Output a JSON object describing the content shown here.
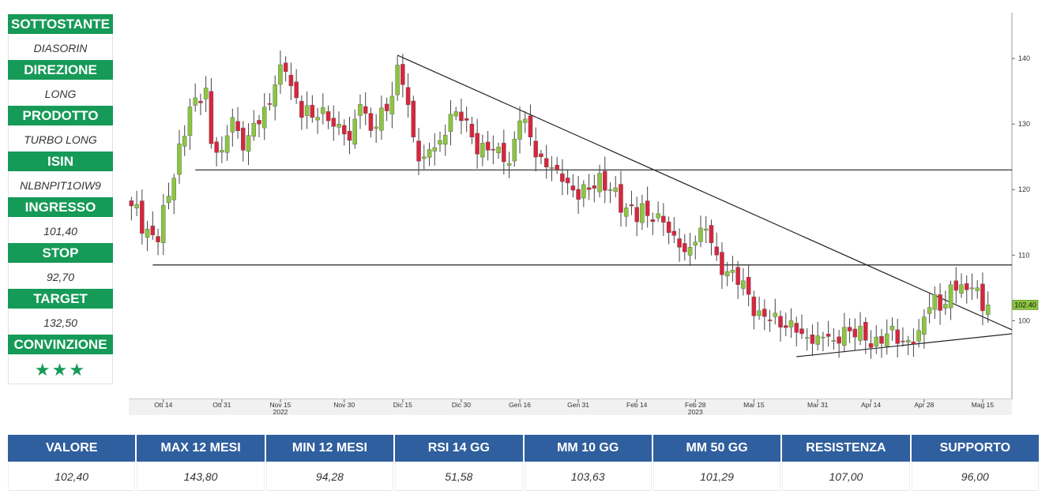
{
  "sidebar": [
    {
      "label": "SOTTOSTANTE",
      "value": "DIASORIN"
    },
    {
      "label": "DIREZIONE",
      "value": "LONG"
    },
    {
      "label": "PRODOTTO",
      "value": "TURBO LONG"
    },
    {
      "label": "ISIN",
      "value": "NLBNPIT1OIW9"
    },
    {
      "label": "INGRESSO",
      "value": "101,40"
    },
    {
      "label": "STOP",
      "value": "92,70"
    },
    {
      "label": "TARGET",
      "value": "132,50"
    },
    {
      "label": "CONVINZIONE",
      "value": "★★★"
    }
  ],
  "stats": {
    "headers": [
      "VALORE",
      "MAX 12 MESI",
      "MIN 12 MESI",
      "RSI 14 GG",
      "MM 10 GG",
      "MM 50 GG",
      "RESISTENZA",
      "SUPPORTO"
    ],
    "values": [
      "102,40",
      "143,80",
      "94,28",
      "51,58",
      "103,63",
      "101,29",
      "107,00",
      "96,00"
    ]
  },
  "colors": {
    "green_head": "#169a57",
    "blue_head": "#2f5f9e",
    "bull": "#8cc63f",
    "bear": "#d7263d"
  },
  "chart_data": {
    "type": "candlestick",
    "ylim": [
      88,
      147
    ],
    "y_ticks": [
      100,
      110,
      120,
      130,
      140
    ],
    "x_ticks": [
      {
        "index": 6,
        "label": "Ott 14"
      },
      {
        "index": 17,
        "label": "Ott 31"
      },
      {
        "index": 28,
        "label": "Nov 15",
        "sub": "2022"
      },
      {
        "index": 40,
        "label": "Nov 30"
      },
      {
        "index": 51,
        "label": "Dic 15"
      },
      {
        "index": 62,
        "label": "Dic 30"
      },
      {
        "index": 73,
        "label": "Gen 16"
      },
      {
        "index": 84,
        "label": "Gen 31"
      },
      {
        "index": 95,
        "label": "Feb 14"
      },
      {
        "index": 106,
        "label": "Feb 28",
        "sub": "2023"
      },
      {
        "index": 117,
        "label": "Mar 15"
      },
      {
        "index": 129,
        "label": "Mar 31"
      },
      {
        "index": 139,
        "label": "Apr 14"
      },
      {
        "index": 149,
        "label": "Apr 28"
      },
      {
        "index": 160,
        "label": "Mag 15"
      }
    ],
    "last_price_label": "102.40",
    "last_price": 102.4,
    "anchors": [
      {
        "i": 0,
        "v": 117.5
      },
      {
        "i": 3,
        "v": 114
      },
      {
        "i": 5,
        "v": 112
      },
      {
        "i": 7,
        "v": 119
      },
      {
        "i": 9,
        "v": 127
      },
      {
        "i": 12,
        "v": 134
      },
      {
        "i": 14,
        "v": 135.5
      },
      {
        "i": 15,
        "v": 127
      },
      {
        "i": 17,
        "v": 126
      },
      {
        "i": 19,
        "v": 131
      },
      {
        "i": 21,
        "v": 126
      },
      {
        "i": 24,
        "v": 130
      },
      {
        "i": 27,
        "v": 136
      },
      {
        "i": 29,
        "v": 138
      },
      {
        "i": 31,
        "v": 134
      },
      {
        "i": 34,
        "v": 131
      },
      {
        "i": 36,
        "v": 132.5
      },
      {
        "i": 39,
        "v": 130
      },
      {
        "i": 41,
        "v": 127.5
      },
      {
        "i": 43,
        "v": 133
      },
      {
        "i": 45,
        "v": 129
      },
      {
        "i": 48,
        "v": 132
      },
      {
        "i": 50,
        "v": 139
      },
      {
        "i": 51,
        "v": 136
      },
      {
        "i": 53,
        "v": 128
      },
      {
        "i": 55,
        "v": 125
      },
      {
        "i": 58,
        "v": 127.5
      },
      {
        "i": 60,
        "v": 131.5
      },
      {
        "i": 62,
        "v": 130.5
      },
      {
        "i": 64,
        "v": 128
      },
      {
        "i": 67,
        "v": 126
      },
      {
        "i": 69,
        "v": 126.5
      },
      {
        "i": 71,
        "v": 124
      },
      {
        "i": 73,
        "v": 130.5
      },
      {
        "i": 75,
        "v": 128
      },
      {
        "i": 77,
        "v": 125
      },
      {
        "i": 80,
        "v": 123
      },
      {
        "i": 82,
        "v": 121
      },
      {
        "i": 84,
        "v": 118.5
      },
      {
        "i": 86,
        "v": 120
      },
      {
        "i": 88,
        "v": 122.5
      },
      {
        "i": 90,
        "v": 120
      },
      {
        "i": 92,
        "v": 116.5
      },
      {
        "i": 94,
        "v": 117.5
      },
      {
        "i": 97,
        "v": 116
      },
      {
        "i": 100,
        "v": 115
      },
      {
        "i": 102,
        "v": 113
      },
      {
        "i": 104,
        "v": 110.5
      },
      {
        "i": 106,
        "v": 112
      },
      {
        "i": 108,
        "v": 114
      },
      {
        "i": 110,
        "v": 110
      },
      {
        "i": 112,
        "v": 107.5
      },
      {
        "i": 114,
        "v": 105.5
      },
      {
        "i": 116,
        "v": 104
      },
      {
        "i": 118,
        "v": 101.5
      },
      {
        "i": 120,
        "v": 100
      },
      {
        "i": 122,
        "v": 99
      },
      {
        "i": 124,
        "v": 100
      },
      {
        "i": 126,
        "v": 98
      },
      {
        "i": 128,
        "v": 96.5
      },
      {
        "i": 130,
        "v": 97.5
      },
      {
        "i": 132,
        "v": 97
      },
      {
        "i": 134,
        "v": 99
      },
      {
        "i": 136,
        "v": 97.5
      },
      {
        "i": 138,
        "v": 97
      },
      {
        "i": 140,
        "v": 97.5
      },
      {
        "i": 142,
        "v": 98
      },
      {
        "i": 144,
        "v": 96.5
      },
      {
        "i": 146,
        "v": 97
      },
      {
        "i": 148,
        "v": 98.5
      },
      {
        "i": 150,
        "v": 102
      },
      {
        "i": 151,
        "v": 104
      },
      {
        "i": 153,
        "v": 102.5
      },
      {
        "i": 154,
        "v": 105.5
      },
      {
        "i": 156,
        "v": 105.5
      },
      {
        "i": 158,
        "v": 105
      },
      {
        "i": 160,
        "v": 101.5
      },
      {
        "i": 161,
        "v": 102.4
      }
    ],
    "lines": [
      {
        "name": "support-h-123",
        "i1": 12,
        "v1": 123,
        "i2": 166,
        "v2": 123
      },
      {
        "name": "support-h-108",
        "i1": 4,
        "v1": 108.5,
        "i2": 166,
        "v2": 108.5
      },
      {
        "name": "downtrend",
        "i1": 50,
        "v1": 140.5,
        "i2": 166,
        "v2": 98.6
      },
      {
        "name": "uptrend",
        "i1": 125,
        "v1": 94.5,
        "i2": 166,
        "v2": 98
      }
    ]
  }
}
